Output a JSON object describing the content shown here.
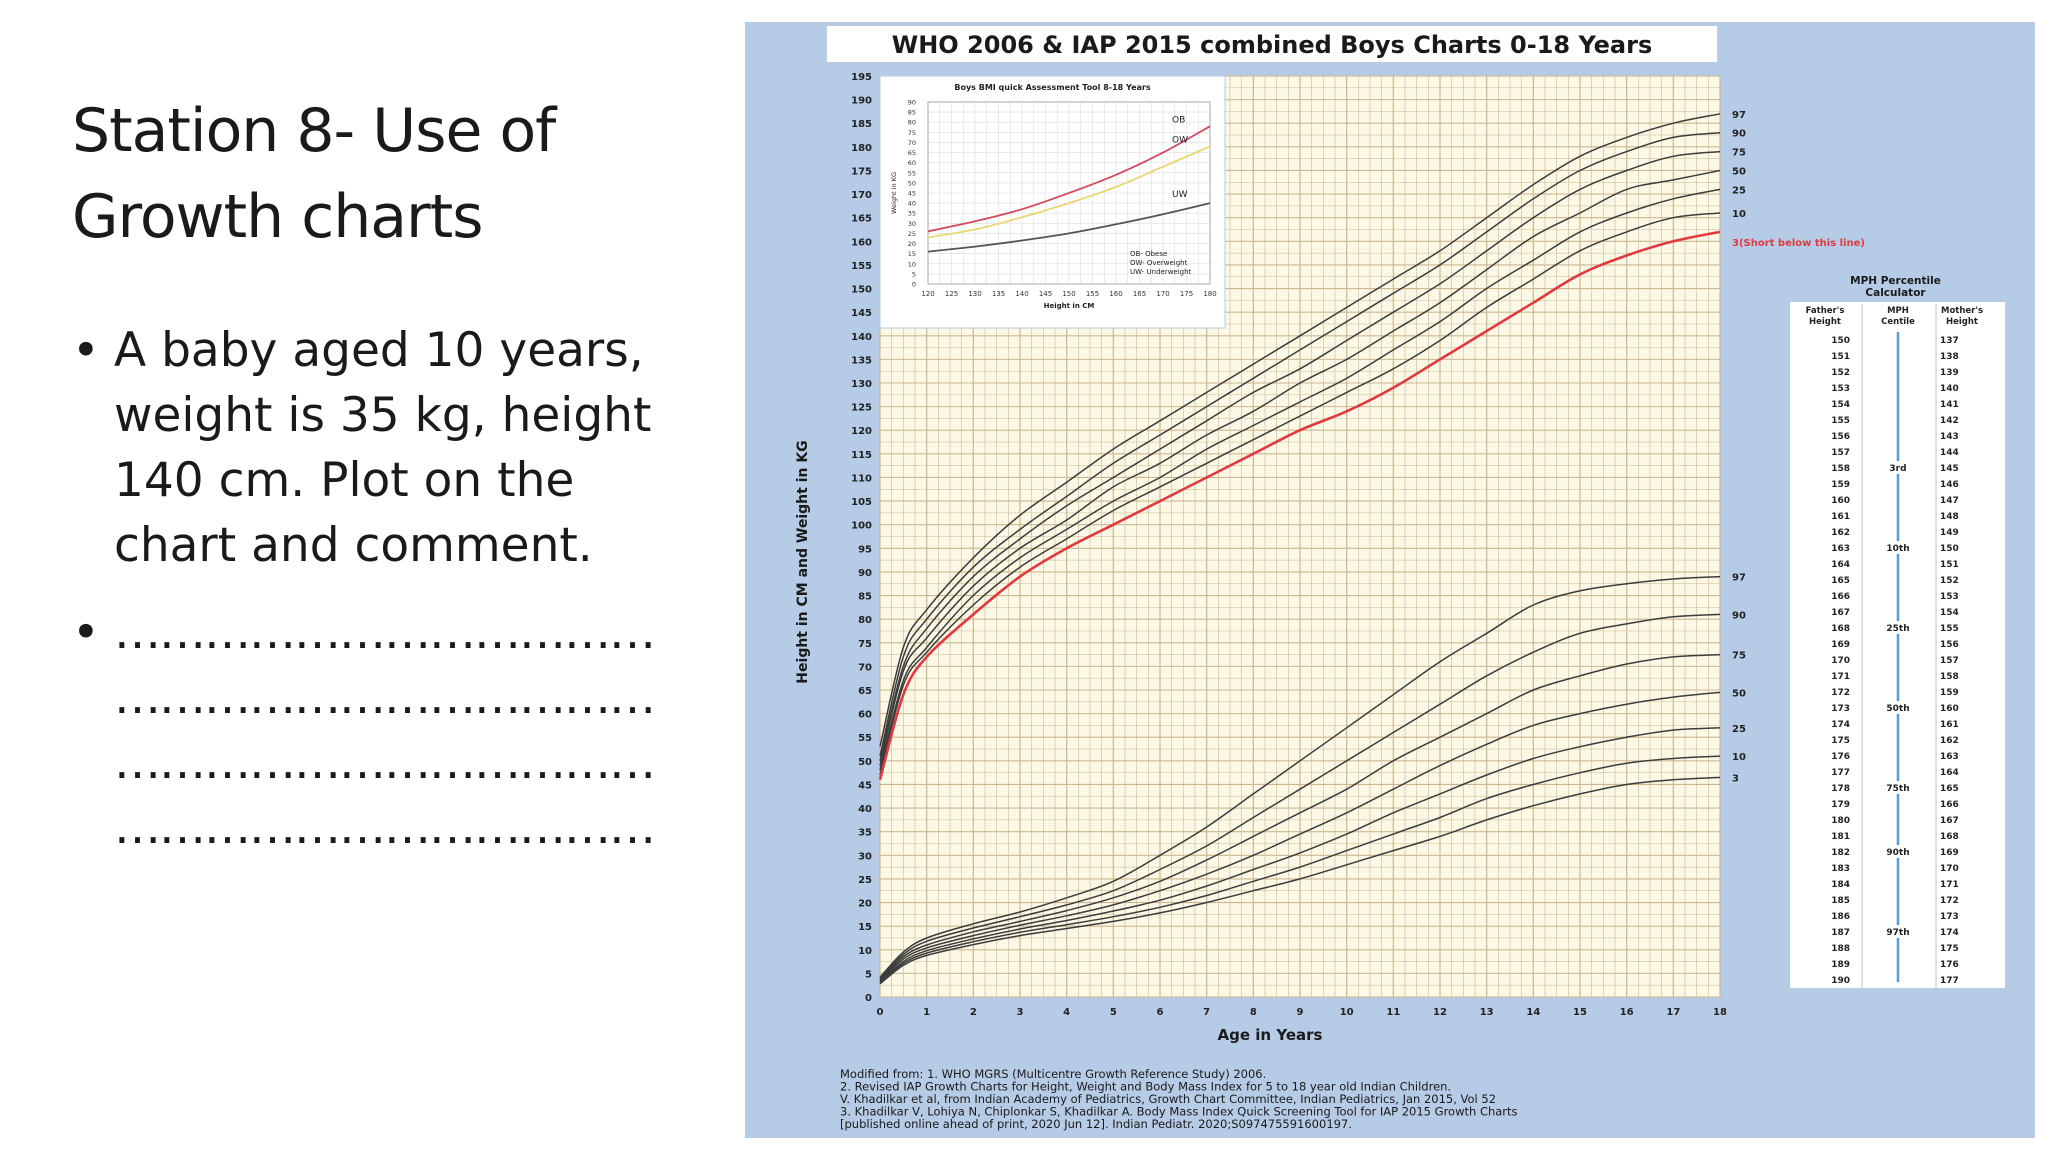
{
  "slide": {
    "title": "Station 8- Use of\nGrowth charts",
    "bullets": [
      "A baby aged 10 years, weight is 35 kg, height 140 cm. Plot on the chart and comment.",
      "………………………………\n………………………………\n………………………………\n………………………………"
    ]
  },
  "figure": {
    "title": "WHO 2006 & IAP 2015 combined Boys Charts 0-18 Years",
    "y_axis_label": "Height in CM and Weight in KG",
    "x_axis_label": "Age in Years",
    "short_note": "3(Short below this line)",
    "colors": {
      "background": "#b6cbe6",
      "grid_bg": "#fbf8e6",
      "grid_line": "#cbb891",
      "curve": "#3c3c3c",
      "third_percentile": "#e0393f"
    },
    "footnote": [
      "Modified from: 1. WHO MGRS (Multicentre Growth Reference Study) 2006.",
      "2. Revised IAP Growth Charts for Height, Weight and Body Mass Index for 5 to 18 year old Indian Children.",
      "V. Khadilkar et al, from Indian Academy of Pediatrics, Growth Chart Committee, Indian Pediatrics, Jan 2015, Vol 52",
      "3. Khadilkar V, Lohiya N, Chiplonkar S, Khadilkar A. Body Mass Index Quick Screening Tool for IAP 2015 Growth Charts",
      "[published online ahead of print, 2020 Jun 12]. Indian Pediatr. 2020;S097475591600197."
    ]
  },
  "chart_data": [
    {
      "type": "line",
      "title": "WHO 2006 & IAP 2015 combined Boys Charts 0-18 Years",
      "xlabel": "Age in Years",
      "ylabel": "Height in CM and Weight in KG",
      "xlim": [
        0,
        18
      ],
      "ylim": [
        0,
        195
      ],
      "grid": true,
      "x": [
        0,
        0.5,
        1,
        2,
        3,
        4,
        5,
        6,
        7,
        8,
        9,
        10,
        11,
        12,
        13,
        14,
        15,
        16,
        17,
        18
      ],
      "height_series": [
        {
          "name": "97",
          "values": [
            53,
            74,
            82,
            93,
            102,
            109,
            116,
            122,
            128,
            134,
            140,
            146,
            152,
            158,
            165,
            172,
            178,
            182,
            185,
            187
          ]
        },
        {
          "name": "90",
          "values": [
            51,
            72,
            80,
            91,
            99,
            106,
            113,
            119,
            125,
            131,
            137,
            143,
            149,
            155,
            162,
            169,
            175,
            179,
            182,
            183
          ]
        },
        {
          "name": "75",
          "values": [
            50,
            70,
            78,
            89,
            97,
            104,
            110,
            116,
            122,
            128,
            133,
            139,
            145,
            151,
            158,
            165,
            171,
            175,
            178,
            179
          ]
        },
        {
          "name": "50",
          "values": [
            49,
            69,
            76,
            87,
            95,
            101,
            108,
            113,
            119,
            124,
            130,
            135,
            141,
            147,
            154,
            161,
            166,
            171,
            173,
            175
          ]
        },
        {
          "name": "25",
          "values": [
            48,
            67,
            74,
            85,
            93,
            99,
            105,
            110,
            116,
            121,
            126,
            131,
            137,
            143,
            150,
            156,
            162,
            166,
            169,
            171
          ]
        },
        {
          "name": "10",
          "values": [
            47,
            66,
            73,
            83,
            91,
            97,
            103,
            108,
            113,
            118,
            123,
            128,
            133,
            139,
            146,
            152,
            158,
            162,
            165,
            166
          ]
        },
        {
          "name": "3(Short below this line)",
          "values": [
            46,
            64,
            72,
            81,
            89,
            95,
            100,
            105,
            110,
            115,
            120,
            124,
            129,
            135,
            141,
            147,
            153,
            157,
            160,
            162
          ]
        }
      ],
      "weight_series": [
        {
          "name": "97",
          "values": [
            4.2,
            9.5,
            12.5,
            15.5,
            18,
            21,
            24.5,
            30,
            36,
            43,
            50,
            57,
            64,
            71,
            77,
            83,
            86,
            87.5,
            88.5,
            89
          ]
        },
        {
          "name": "90",
          "values": [
            3.9,
            9,
            11.8,
            14.6,
            17,
            19.5,
            22.5,
            27,
            32,
            38,
            44,
            50,
            56,
            62,
            68,
            73,
            77,
            79,
            80.5,
            81
          ]
        },
        {
          "name": "75",
          "values": [
            3.6,
            8.5,
            11,
            13.8,
            16,
            18.3,
            21,
            24.5,
            29,
            34,
            39,
            44,
            50,
            55,
            60,
            65,
            68,
            70.5,
            72,
            72.5
          ]
        },
        {
          "name": "50",
          "values": [
            3.4,
            8,
            10.4,
            13,
            15.2,
            17.2,
            19.5,
            22.5,
            26,
            30,
            34.5,
            39,
            44,
            49,
            53.5,
            57.5,
            60,
            62,
            63.5,
            64.5
          ]
        },
        {
          "name": "25",
          "values": [
            3.2,
            7.5,
            9.8,
            12.3,
            14.4,
            16.2,
            18.2,
            20.5,
            23.5,
            27,
            30.5,
            34.5,
            39,
            43,
            47,
            50.5,
            53,
            55,
            56.5,
            57
          ]
        },
        {
          "name": "10",
          "values": [
            3,
            7.1,
            9.3,
            11.7,
            13.7,
            15.3,
            17,
            19,
            21.5,
            24.5,
            27.5,
            31,
            34.5,
            38,
            42,
            45,
            47.5,
            49.5,
            50.5,
            51
          ]
        },
        {
          "name": "3",
          "values": [
            2.8,
            6.7,
            8.8,
            11.1,
            13,
            14.5,
            16,
            17.8,
            20,
            22.5,
            25,
            28,
            31,
            34,
            37.5,
            40.5,
            43,
            45,
            46,
            46.5
          ]
        }
      ],
      "y_ticks": [
        0,
        5,
        10,
        15,
        20,
        25,
        30,
        35,
        40,
        45,
        50,
        55,
        60,
        65,
        70,
        75,
        80,
        85,
        90,
        95,
        100,
        105,
        110,
        115,
        120,
        125,
        130,
        135,
        140,
        145,
        150,
        155,
        160,
        165,
        170,
        175,
        180,
        185,
        190,
        195
      ],
      "x_ticks": [
        0,
        1,
        2,
        3,
        4,
        5,
        6,
        7,
        8,
        9,
        10,
        11,
        12,
        13,
        14,
        15,
        16,
        17,
        18
      ]
    },
    {
      "type": "line",
      "title": "Boys BMI quick Assessment Tool 8-18 Years",
      "xlabel": "Height in CM",
      "ylabel": "Weight in KG",
      "xlim": [
        120,
        180
      ],
      "ylim": [
        0,
        90
      ],
      "x": [
        120,
        130,
        140,
        150,
        160,
        170,
        180
      ],
      "series": [
        {
          "name": "OB",
          "values": [
            26,
            31,
            37,
            45,
            54,
            65,
            78
          ],
          "color": "#d24a5e"
        },
        {
          "name": "OW",
          "values": [
            23,
            27,
            33,
            40,
            48,
            58,
            68
          ],
          "color": "#e6d873"
        },
        {
          "name": "UW",
          "values": [
            16,
            18.5,
            21.5,
            25,
            29.5,
            34.5,
            40
          ],
          "color": "#555555"
        }
      ],
      "legend": [
        "OB- Obese",
        "OW- Overweight",
        "UW- Underweight"
      ],
      "x_ticks": [
        120,
        125,
        130,
        135,
        140,
        145,
        150,
        155,
        160,
        165,
        170,
        175,
        180
      ],
      "y_ticks": [
        0,
        5,
        10,
        15,
        20,
        25,
        30,
        35,
        40,
        45,
        50,
        55,
        60,
        65,
        70,
        75,
        80,
        85,
        90
      ]
    },
    {
      "type": "table",
      "title": "MPH Percentile Calculator",
      "columns": [
        "Father's Height",
        "MPH Centile",
        "Mother's Height"
      ],
      "father_heights": [
        150,
        151,
        152,
        153,
        154,
        155,
        156,
        157,
        158,
        159,
        160,
        161,
        162,
        163,
        164,
        165,
        166,
        167,
        168,
        169,
        170,
        171,
        172,
        173,
        174,
        175,
        176,
        177,
        178,
        179,
        180,
        181,
        182,
        183,
        184,
        185,
        186,
        187,
        188,
        189,
        190
      ],
      "mother_heights": [
        137,
        138,
        139,
        140,
        141,
        142,
        143,
        144,
        145,
        146,
        147,
        148,
        149,
        150,
        151,
        152,
        153,
        154,
        155,
        156,
        157,
        158,
        159,
        160,
        161,
        162,
        163,
        164,
        165,
        166,
        167,
        168,
        169,
        170,
        171,
        172,
        173,
        174,
        175,
        176,
        177
      ],
      "centile_labels": [
        {
          "row": 8,
          "label": "3rd"
        },
        {
          "row": 13,
          "label": "10th"
        },
        {
          "row": 18,
          "label": "25th"
        },
        {
          "row": 23,
          "label": "50th"
        },
        {
          "row": 28,
          "label": "75th"
        },
        {
          "row": 32,
          "label": "90th"
        },
        {
          "row": 37,
          "label": "97th"
        }
      ]
    }
  ]
}
